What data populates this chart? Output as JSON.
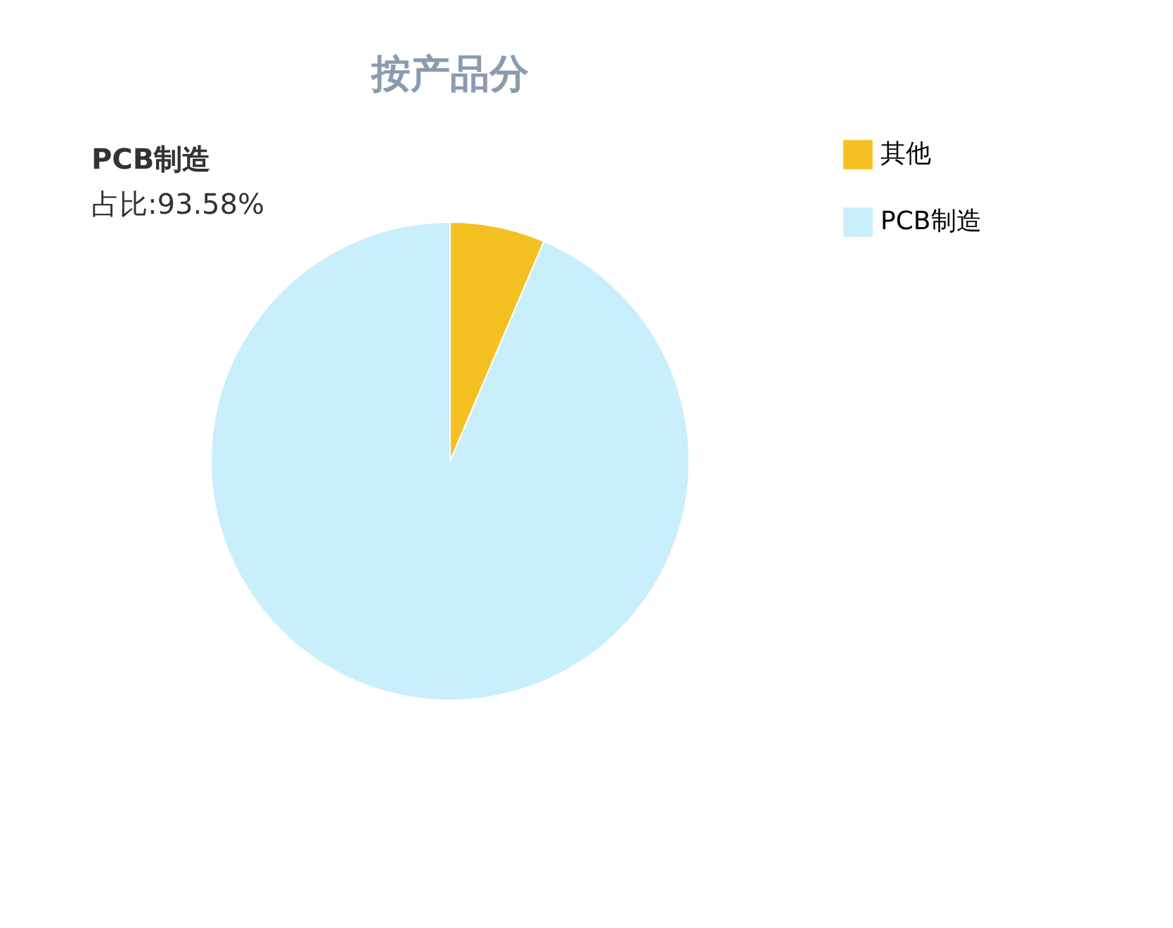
{
  "chart_data": {
    "type": "pie",
    "title": "按产品分",
    "categories": [
      "其他",
      "PCB制造"
    ],
    "values": [
      6.42,
      93.58
    ],
    "colors": [
      "#f5c022",
      "#c9eefc"
    ],
    "legend": "right",
    "annotations": [
      "PCB制造",
      "占比:93.58%"
    ]
  }
}
